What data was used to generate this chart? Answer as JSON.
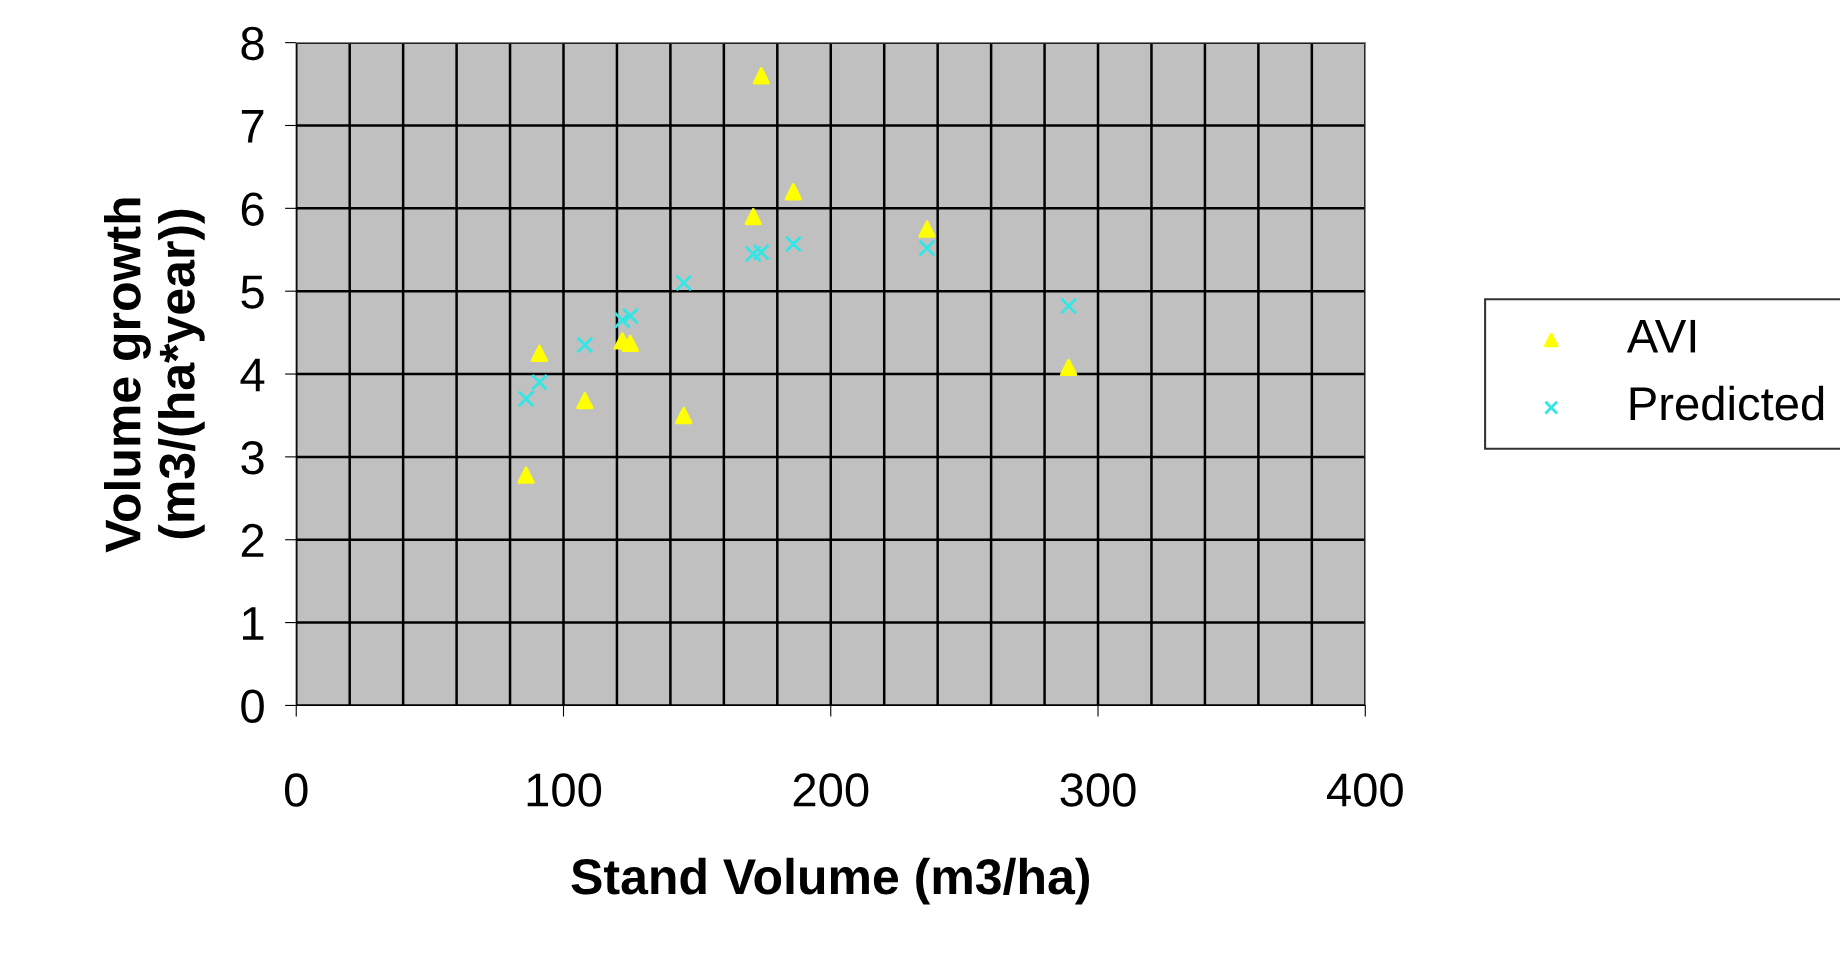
{
  "chart_data": {
    "type": "scatter",
    "xlabel": "Stand Volume (m3/ha)",
    "ylabel": "Volume growth\n(m3/(ha*year))",
    "xlim": [
      0,
      400
    ],
    "ylim": [
      0,
      8
    ],
    "xticks": [
      0,
      100,
      200,
      300,
      400
    ],
    "yticks": [
      0,
      1,
      2,
      3,
      4,
      5,
      6,
      7,
      8
    ],
    "grid": true,
    "legend": "right",
    "series": [
      {
        "name": "AVI",
        "color": "#ffff00",
        "marker": "triangle",
        "x": [
          86,
          91,
          108,
          122,
          125,
          145,
          171,
          174,
          186,
          236,
          289
        ],
        "values": [
          2.78,
          4.25,
          3.68,
          4.4,
          4.37,
          3.5,
          5.9,
          7.6,
          6.2,
          5.75,
          4.08
        ]
      },
      {
        "name": "Predicted",
        "color": "#33e6e6",
        "marker": "cross",
        "x": [
          86,
          91,
          108,
          122,
          125,
          145,
          171,
          174,
          186,
          236,
          289
        ],
        "values": [
          3.7,
          3.9,
          4.35,
          4.65,
          4.7,
          5.1,
          5.45,
          5.47,
          5.57,
          5.52,
          4.82
        ]
      }
    ]
  }
}
